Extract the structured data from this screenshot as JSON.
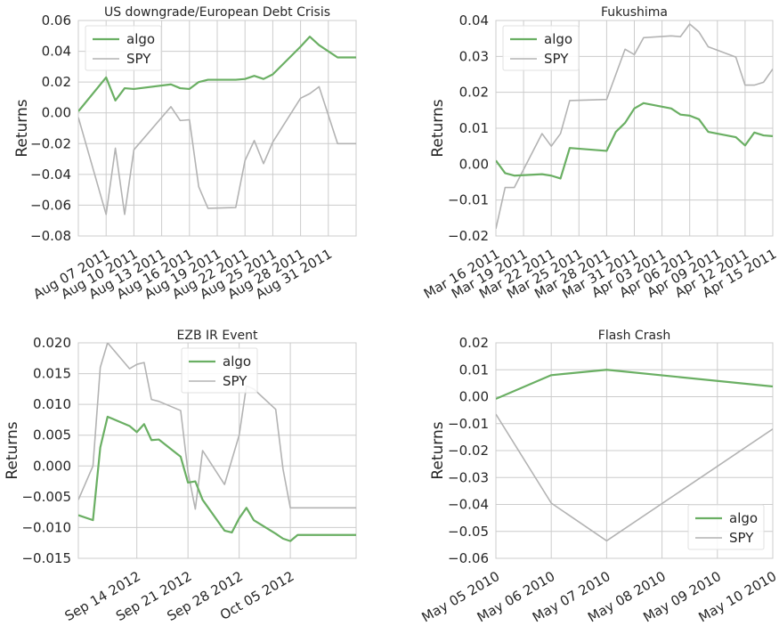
{
  "chart_data": [
    {
      "type": "line",
      "title": "US downgrade/European Debt Crisis",
      "ylabel": "Returns",
      "xlabel": "",
      "ylim": [
        -0.08,
        0.06
      ],
      "yticks": [
        -0.08,
        -0.06,
        -0.04,
        -0.02,
        0.0,
        0.02,
        0.04,
        0.06
      ],
      "ytick_labels": [
        "−0.08",
        "−0.06",
        "−0.04",
        "−0.02",
        "0.00",
        "0.02",
        "0.04",
        "0.06"
      ],
      "xlim": [
        0,
        30
      ],
      "xticks": [
        3,
        6,
        9,
        12,
        15,
        18,
        21,
        24,
        27
      ],
      "xtick_labels": [
        "Aug 07 2011",
        "Aug 10 2011",
        "Aug 13 2011",
        "Aug 16 2011",
        "Aug 19 2011",
        "Aug 22 2011",
        "Aug 25 2011",
        "Aug 28 2011",
        "Aug 31 2011"
      ],
      "legend_position": "upper-left",
      "grid": true,
      "series": [
        {
          "name": "algo",
          "color": "#6aaf63",
          "x": [
            0,
            3,
            4,
            5,
            6,
            10,
            11,
            12,
            13,
            14,
            17,
            18,
            19,
            20,
            21,
            24,
            25,
            26,
            28,
            29,
            30
          ],
          "y": [
            0.001,
            0.023,
            0.008,
            0.016,
            0.0155,
            0.0185,
            0.016,
            0.0155,
            0.02,
            0.0215,
            0.0215,
            0.022,
            0.024,
            0.022,
            0.025,
            0.043,
            0.0495,
            0.044,
            0.036,
            0.036,
            0.036
          ]
        },
        {
          "name": "SPY",
          "color": "#b3b3b3",
          "x": [
            0,
            3,
            4,
            5,
            6,
            10,
            11,
            12,
            13,
            14,
            17,
            18,
            19,
            20,
            21,
            24,
            25,
            26,
            28,
            29,
            30
          ],
          "y": [
            -0.003,
            -0.066,
            -0.023,
            -0.066,
            -0.024,
            0.004,
            -0.005,
            -0.0045,
            -0.048,
            -0.062,
            -0.0615,
            -0.031,
            -0.018,
            -0.033,
            -0.019,
            0.0095,
            0.0125,
            0.017,
            -0.02,
            -0.02,
            -0.02
          ]
        }
      ]
    },
    {
      "type": "line",
      "title": "Fukushima",
      "ylabel": "Returns",
      "xlabel": "",
      "ylim": [
        -0.02,
        0.04
      ],
      "yticks": [
        -0.02,
        -0.01,
        0.0,
        0.01,
        0.02,
        0.03,
        0.04
      ],
      "ytick_labels": [
        "−0.02",
        "−0.01",
        "0.00",
        "0.01",
        "0.02",
        "0.03",
        "0.04"
      ],
      "xlim": [
        0,
        30
      ],
      "xticks": [
        0,
        3,
        6,
        9,
        12,
        15,
        18,
        21,
        24,
        27,
        30
      ],
      "xtick_labels": [
        "Mar 16 2011",
        "Mar 19 2011",
        "Mar 22 2011",
        "Mar 25 2011",
        "Mar 28 2011",
        "Mar 31 2011",
        "Apr 03 2011",
        "Apr 06 2011",
        "Apr 09 2011",
        "Apr 12 2011",
        "Apr 15 2011"
      ],
      "legend_position": "upper-left",
      "grid": true,
      "series": [
        {
          "name": "algo",
          "color": "#6aaf63",
          "x": [
            0,
            1,
            2,
            5,
            6,
            7,
            8,
            12,
            13,
            14,
            15,
            16,
            19,
            20,
            21,
            22,
            23,
            26,
            27,
            28,
            29,
            30
          ],
          "y": [
            0.001,
            -0.0025,
            -0.0032,
            -0.0028,
            -0.0032,
            -0.004,
            0.0045,
            0.0037,
            0.009,
            0.0115,
            0.0155,
            0.017,
            0.0155,
            0.0138,
            0.0135,
            0.0125,
            0.009,
            0.0075,
            0.0052,
            0.0088,
            0.008,
            0.0078
          ]
        },
        {
          "name": "SPY",
          "color": "#b3b3b3",
          "x": [
            0,
            1,
            2,
            5,
            6,
            7,
            8,
            12,
            13,
            14,
            15,
            16,
            19,
            20,
            21,
            22,
            23,
            26,
            27,
            28,
            29,
            30
          ],
          "y": [
            -0.018,
            -0.0065,
            -0.0065,
            0.0085,
            0.005,
            0.0085,
            0.0177,
            0.018,
            0.025,
            0.032,
            0.0305,
            0.0352,
            0.0357,
            0.0355,
            0.039,
            0.0368,
            0.0327,
            0.0298,
            0.022,
            0.022,
            0.0228,
            0.0265
          ]
        }
      ]
    },
    {
      "type": "line",
      "title": "EZB IR Event",
      "ylabel": "Returns",
      "xlabel": "",
      "ylim": [
        -0.015,
        0.02
      ],
      "yticks": [
        -0.015,
        -0.01,
        -0.005,
        0.0,
        0.005,
        0.01,
        0.015,
        0.02
      ],
      "ytick_labels": [
        "−0.015",
        "−0.010",
        "−0.005",
        "0.000",
        "0.005",
        "0.010",
        "0.015",
        "0.020"
      ],
      "xlim": [
        0,
        38
      ],
      "xticks": [
        8,
        15,
        22,
        29
      ],
      "xtick_labels": [
        "Sep 14 2012",
        "Sep 21 2012",
        "Sep 28 2012",
        "Oct 05 2012"
      ],
      "legend_position": "upper-center",
      "grid": true,
      "series": [
        {
          "name": "algo",
          "color": "#6aaf63",
          "x": [
            0,
            2,
            3,
            4,
            7,
            8,
            9,
            10,
            11,
            14,
            15,
            16,
            17,
            20,
            21,
            22,
            23,
            24,
            27,
            28,
            29,
            30,
            31,
            34,
            35,
            36,
            37,
            38
          ],
          "y": [
            -0.008,
            -0.0088,
            0.003,
            0.008,
            0.0065,
            0.0055,
            0.0068,
            0.0042,
            0.0043,
            0.0015,
            -0.0027,
            -0.0025,
            -0.0055,
            -0.0105,
            -0.0108,
            -0.0085,
            -0.0068,
            -0.0088,
            -0.011,
            -0.0118,
            -0.0122,
            -0.0112,
            -0.0112,
            -0.0112,
            -0.0112,
            -0.0112,
            -0.0112,
            -0.0112
          ]
        },
        {
          "name": "SPY",
          "color": "#b3b3b3",
          "x": [
            0,
            2,
            3,
            4,
            7,
            8,
            9,
            10,
            11,
            14,
            15,
            16,
            17,
            20,
            21,
            22,
            23,
            24,
            27,
            28,
            29,
            30,
            31,
            34,
            35,
            36,
            37,
            38
          ],
          "y": [
            -0.0055,
            0.0,
            0.016,
            0.02,
            0.0158,
            0.0165,
            0.0168,
            0.0108,
            0.0105,
            0.009,
            -0.001,
            -0.007,
            0.0025,
            -0.003,
            0.001,
            0.005,
            0.013,
            0.0125,
            0.0092,
            -0.0005,
            -0.0068,
            -0.0068,
            -0.0068,
            -0.0068,
            -0.0068,
            -0.0068,
            -0.0068,
            -0.0068
          ]
        }
      ]
    },
    {
      "type": "line",
      "title": "Flash Crash",
      "ylabel": "Returns",
      "xlabel": "",
      "ylim": [
        -0.06,
        0.02
      ],
      "yticks": [
        -0.06,
        -0.05,
        -0.04,
        -0.03,
        -0.02,
        -0.01,
        0.0,
        0.01,
        0.02
      ],
      "ytick_labels": [
        "−0.06",
        "−0.05",
        "−0.04",
        "−0.03",
        "−0.02",
        "−0.01",
        "0.00",
        "0.01",
        "0.02"
      ],
      "xlim": [
        0,
        5
      ],
      "xticks": [
        0,
        1,
        2,
        3,
        4,
        5
      ],
      "xtick_labels": [
        "May 05 2010",
        "May 06 2010",
        "May 07 2010",
        "May 08 2010",
        "May 09 2010",
        "May 10 2010"
      ],
      "legend_position": "lower-right",
      "grid": true,
      "series": [
        {
          "name": "algo",
          "color": "#6aaf63",
          "x": [
            0,
            1,
            2,
            5
          ],
          "y": [
            -0.0008,
            0.008,
            0.01,
            0.0038
          ]
        },
        {
          "name": "SPY",
          "color": "#b3b3b3",
          "x": [
            0,
            1,
            2,
            5
          ],
          "y": [
            -0.0065,
            -0.0395,
            -0.0535,
            -0.012
          ]
        }
      ]
    }
  ]
}
